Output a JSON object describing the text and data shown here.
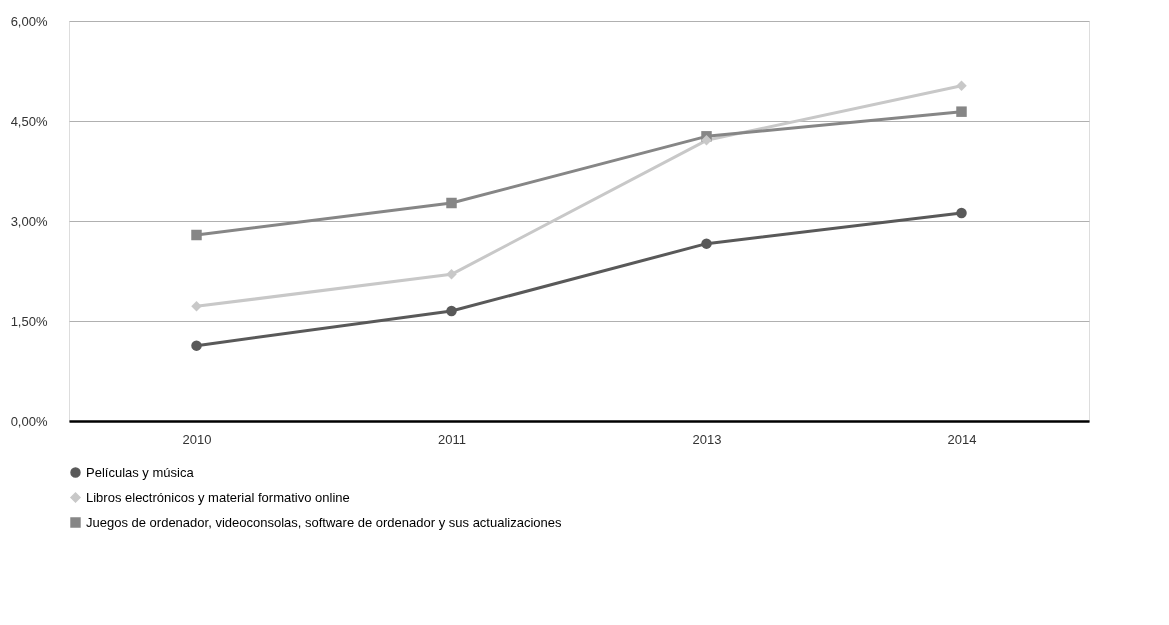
{
  "chart_data": {
    "type": "line",
    "categories": [
      "2010",
      "2011",
      "2013",
      "2014"
    ],
    "series": [
      {
        "name": "Películas y música",
        "color": "#595959",
        "marker": "circle",
        "values": [
          1.13,
          1.65,
          2.66,
          3.12
        ]
      },
      {
        "name": "Libros electrónicos y material formativo online",
        "color": "#c8c8c8",
        "marker": "diamond",
        "values": [
          1.72,
          2.2,
          4.21,
          5.03
        ]
      },
      {
        "name": "Juegos de ordenador, videoconsolas, software de ordenador y sus actualizaciones",
        "color": "#868686",
        "marker": "square",
        "values": [
          2.79,
          3.27,
          4.27,
          4.64
        ]
      }
    ],
    "ylim": [
      0,
      6
    ],
    "yticks": [
      {
        "value": 0,
        "label": "0,00%"
      },
      {
        "value": 1.5,
        "label": "1,50%"
      },
      {
        "value": 3,
        "label": "3,00%"
      },
      {
        "value": 4.5,
        "label": "4,50%"
      },
      {
        "value": 6,
        "label": "6,00%"
      }
    ],
    "grid": "y",
    "legend": "bottom",
    "line_style": "solid"
  }
}
